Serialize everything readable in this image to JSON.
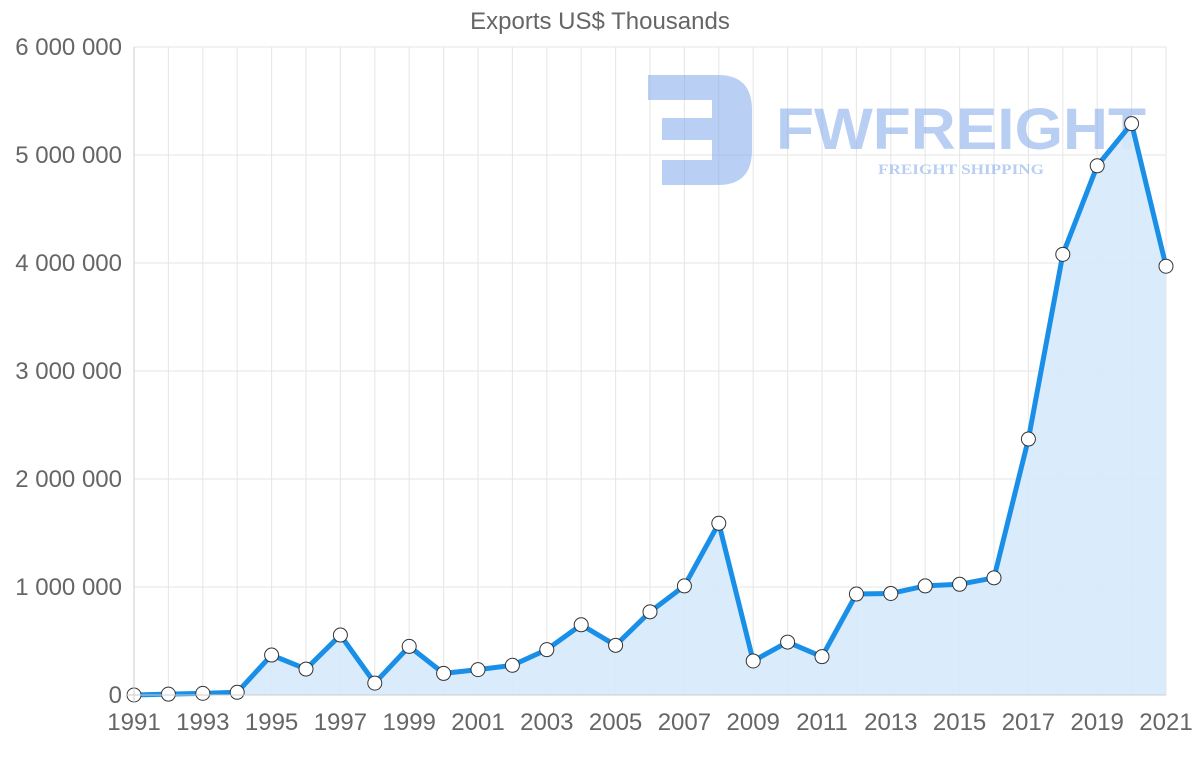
{
  "chart_data": {
    "type": "area",
    "title": "Exports US$ Thousands",
    "xlabel": "",
    "ylabel": "",
    "ylim": [
      0,
      6000000
    ],
    "yticks": [
      0,
      1000000,
      2000000,
      3000000,
      4000000,
      5000000,
      6000000
    ],
    "ytick_labels": [
      "0",
      "1 000 000",
      "2 000 000",
      "3 000 000",
      "4 000 000",
      "5 000 000",
      "6 000 000"
    ],
    "xtick_labels": [
      "1991",
      "1993",
      "1995",
      "1997",
      "1999",
      "2001",
      "2003",
      "2005",
      "2007",
      "2009",
      "2011",
      "2013",
      "2015",
      "2017",
      "2019",
      "2021"
    ],
    "grid": true,
    "legend": null,
    "x": [
      1991,
      1992,
      1993,
      1994,
      1995,
      1996,
      1997,
      1998,
      1999,
      2000,
      2001,
      2002,
      2003,
      2004,
      2005,
      2006,
      2007,
      2008,
      2009,
      2010,
      2011,
      2012,
      2013,
      2014,
      2015,
      2016,
      2017,
      2018,
      2019,
      2020,
      2021
    ],
    "series": [
      {
        "name": "Exports US$ Thousands",
        "values": [
          0,
          8000,
          15000,
          25000,
          370000,
          240000,
          555000,
          110000,
          450000,
          200000,
          235000,
          275000,
          420000,
          650000,
          460000,
          770000,
          1010000,
          1590000,
          315000,
          490000,
          355000,
          935000,
          940000,
          1010000,
          1025000,
          1085000,
          2370000,
          4080000,
          4900000,
          5290000,
          3970000
        ]
      }
    ]
  },
  "colors": {
    "line": "#1a8fe8",
    "fill": "#d6eafb",
    "point_fill": "#ffffff",
    "point_stroke": "#333333",
    "grid": "#e5e5e5",
    "axis": "#cccccc",
    "text": "#666666",
    "watermark": "#7fa7ea"
  },
  "watermark": {
    "brand": "FWFREIGHT",
    "tagline": "FREIGHT SHIPPING"
  }
}
